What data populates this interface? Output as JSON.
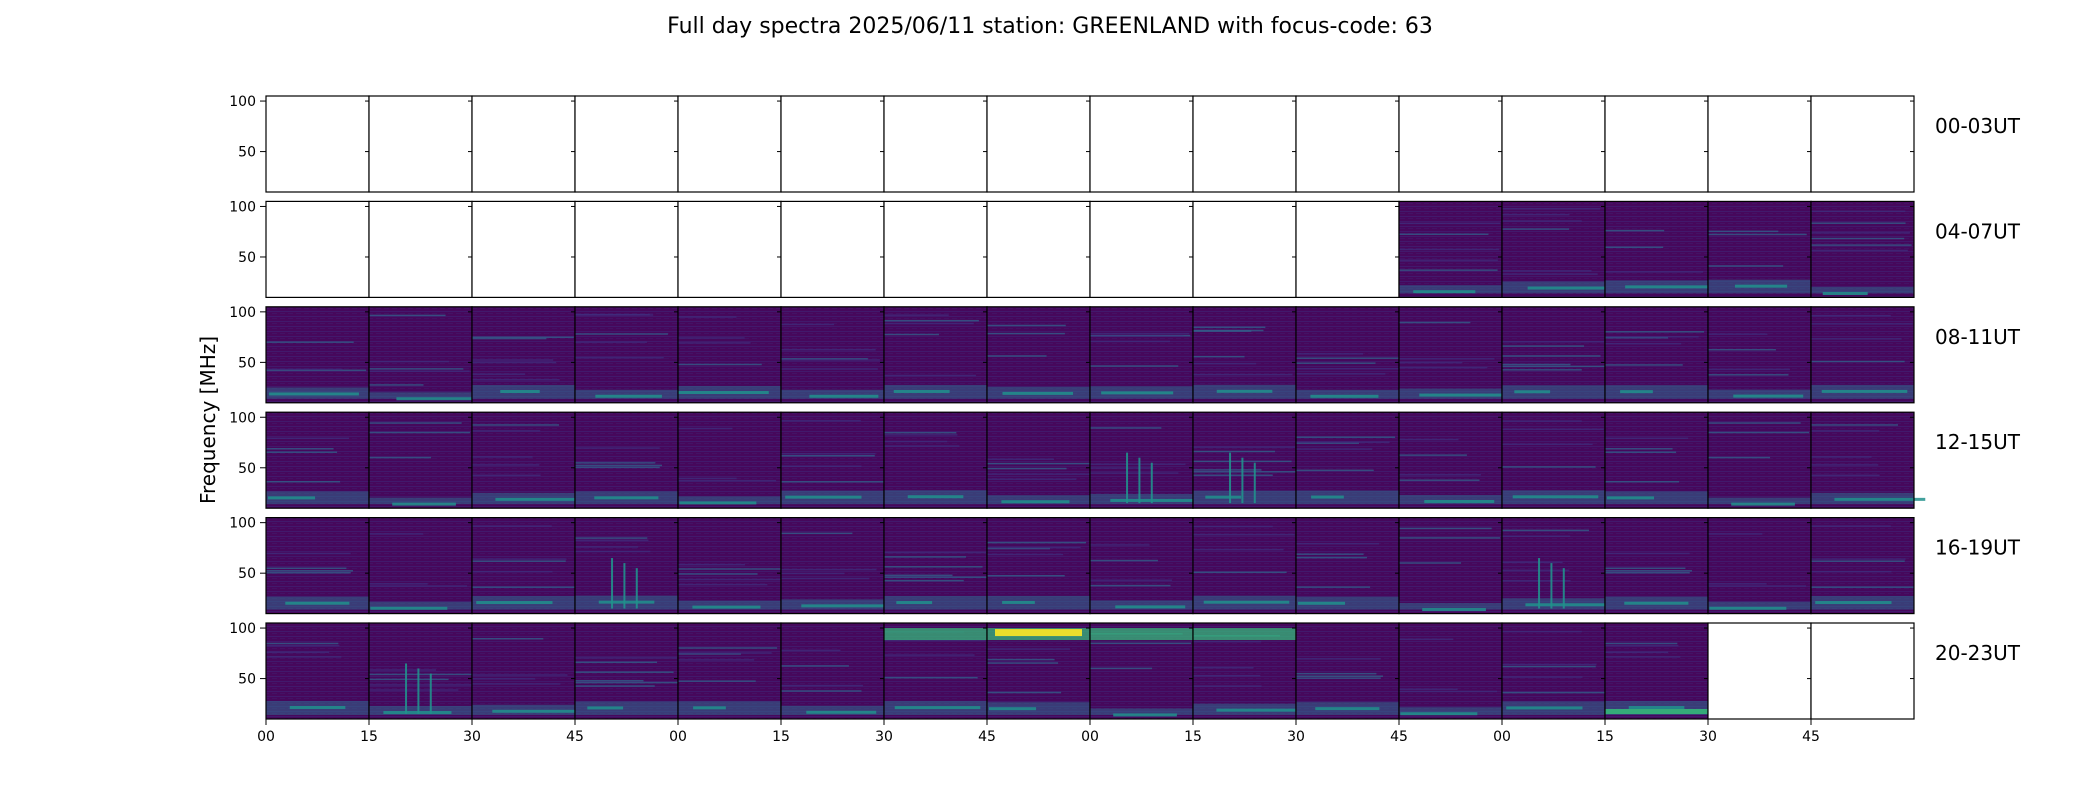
{
  "chart_data": {
    "type": "heatmap",
    "title": "Full day spectra 2025/06/11 station: GREENLAND with focus-code: 63",
    "ylabel": "Frequency [MHz]",
    "xlabel": "",
    "colormap": "viridis",
    "y_range": [
      10,
      105
    ],
    "y_ticks": [
      50,
      100
    ],
    "x_tick_labels": [
      "00",
      "15",
      "30",
      "45",
      "00",
      "15",
      "30",
      "45",
      "00",
      "15",
      "30",
      "45",
      "00",
      "15",
      "30",
      "45"
    ],
    "panels_per_row": 16,
    "panel_minutes": 15,
    "rows": [
      {
        "label": "00-03UT",
        "panels": [
          0,
          0,
          0,
          0,
          0,
          0,
          0,
          0,
          0,
          0,
          0,
          0,
          0,
          0,
          0,
          0
        ]
      },
      {
        "label": "04-07UT",
        "panels": [
          0,
          0,
          0,
          0,
          0,
          0,
          0,
          0,
          0,
          0,
          0,
          1,
          1,
          1,
          1,
          1
        ]
      },
      {
        "label": "08-11UT",
        "panels": [
          1,
          1,
          1,
          1,
          1,
          1,
          1,
          1,
          1,
          1,
          1,
          1,
          1,
          1,
          1,
          1
        ]
      },
      {
        "label": "12-15UT",
        "panels": [
          1,
          1,
          1,
          1,
          1,
          1,
          1,
          1,
          1,
          1,
          1,
          1,
          1,
          1,
          1,
          1
        ]
      },
      {
        "label": "16-19UT",
        "panels": [
          1,
          1,
          1,
          1,
          1,
          1,
          1,
          1,
          1,
          1,
          1,
          1,
          1,
          1,
          1,
          1
        ]
      },
      {
        "label": "20-23UT",
        "panels": [
          1,
          1,
          1,
          1,
          1,
          1,
          1,
          1,
          1,
          1,
          1,
          1,
          1,
          1,
          0,
          0
        ]
      }
    ],
    "colors": {
      "background": "#440154",
      "base": "#46085c",
      "dark": "#3e2f7f",
      "mid": "#31688e",
      "teal": "#21918c",
      "green": "#35b779",
      "yellow": "#fde725",
      "frame": "#000000"
    }
  }
}
